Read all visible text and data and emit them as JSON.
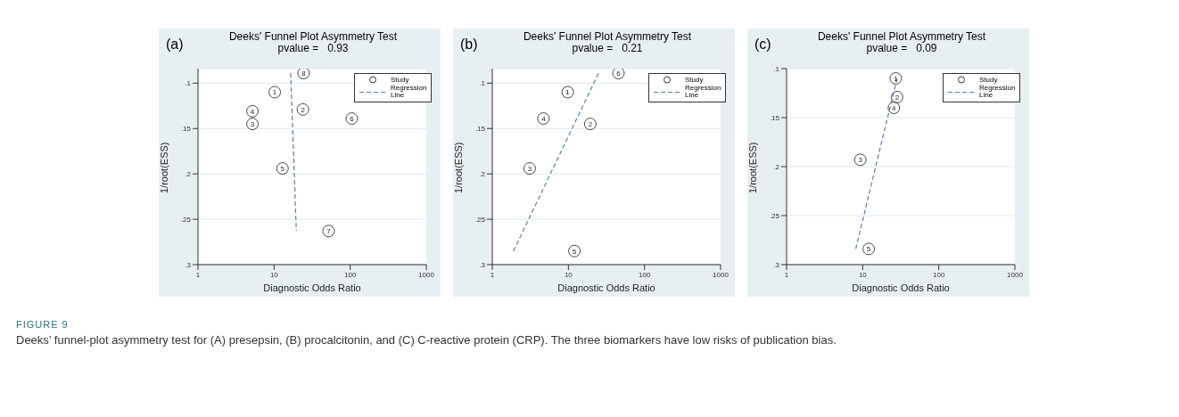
{
  "chart_data": [
    {
      "type": "scatter",
      "title": "Deeks' Funnel Plot Asymmetry Test",
      "subtitle": "pvalue =   0.93",
      "xlabel": "Diagnostic Odds Ratio",
      "ylabel": "1/root(ESS)",
      "annotations": [
        "(a)",
        {
          "text": "8",
          "x": 24.4,
          "y": 0.089
        },
        {
          "text": "1",
          "x": 10.2,
          "y": 0.11
        },
        {
          "text": "4",
          "x": 5.2,
          "y": 0.131
        },
        {
          "text": "3",
          "x": 5.2,
          "y": 0.145
        },
        {
          "text": "2",
          "x": 23.9,
          "y": 0.129
        },
        {
          "text": "6",
          "x": 105,
          "y": 0.139
        },
        {
          "text": "5",
          "x": 12.9,
          "y": 0.194
        },
        {
          "text": "7",
          "x": 52,
          "y": 0.263
        }
      ],
      "log": "x",
      "xlim": [
        1,
        1000
      ],
      "xticks": [
        1,
        10,
        100,
        1000
      ],
      "ylim": [
        0.3,
        0.084
      ],
      "yticks": [
        {
          "value": 0.1,
          "label": ".1"
        },
        {
          "value": 0.15,
          "label": ".15"
        },
        {
          "value": 0.2,
          "label": ".2"
        },
        {
          "value": 0.25,
          "label": ".25"
        },
        {
          "value": 0.3,
          "label": ".3"
        }
      ],
      "grid": "y",
      "legend": "top right",
      "marker": "circle",
      "series": [
        {
          "name": "Study",
          "color": "#333333",
          "x": [
            24.4,
            10.2,
            5.2,
            5.2,
            23.9,
            105,
            12.9,
            52
          ],
          "values": [
            0.089,
            0.11,
            0.131,
            0.145,
            0.129,
            0.139,
            0.194,
            0.263
          ]
        },
        {
          "name": "Regression Line",
          "type": "line",
          "color": "#5b7fa6",
          "line_style": "dashed",
          "marker": "none",
          "x": [
            16.5,
            19.6
          ],
          "values": [
            0.089,
            0.263
          ]
        }
      ]
    },
    {
      "type": "scatter",
      "title": "Deeks' Funnel Plot Asymmetry Test",
      "subtitle": "pvalue =   0.21",
      "xlabel": "Diagnostic Odds Ratio",
      "ylabel": "1/root(ESS)",
      "annotations": [
        "(b)",
        {
          "text": "6",
          "x": 45.5,
          "y": 0.089
        },
        {
          "text": "1",
          "x": 9.8,
          "y": 0.11
        },
        {
          "text": "4",
          "x": 4.7,
          "y": 0.139
        },
        {
          "text": "2",
          "x": 19.4,
          "y": 0.145
        },
        {
          "text": "3",
          "x": 3.1,
          "y": 0.194
        },
        {
          "text": "5",
          "x": 12,
          "y": 0.285
        }
      ],
      "log": "x",
      "xlim": [
        1,
        1000
      ],
      "xticks": [
        1,
        10,
        100,
        1000
      ],
      "ylim": [
        0.3,
        0.084
      ],
      "yticks": [
        {
          "value": 0.1,
          "label": ".1"
        },
        {
          "value": 0.15,
          "label": ".15"
        },
        {
          "value": 0.2,
          "label": ".2"
        },
        {
          "value": 0.25,
          "label": ".25"
        },
        {
          "value": 0.3,
          "label": ".3"
        }
      ],
      "grid": "y",
      "legend": "top right",
      "marker": "circle",
      "series": [
        {
          "name": "Study",
          "color": "#333333",
          "x": [
            45.5,
            9.8,
            4.7,
            19.4,
            3.1,
            12
          ],
          "values": [
            0.089,
            0.11,
            0.139,
            0.145,
            0.194,
            0.285
          ]
        },
        {
          "name": "Regression Line",
          "type": "line",
          "color": "#5b7fa6",
          "line_style": "dashed",
          "marker": "none",
          "x": [
            1.9,
            24.9
          ],
          "values": [
            0.285,
            0.089
          ]
        }
      ]
    },
    {
      "type": "scatter",
      "title": "Deeks' Funnel Plot Asymmetry Test",
      "subtitle": "pvalue =   0.09",
      "xlabel": "Diagnostic Odds Ratio",
      "ylabel": "1/root(ESS)",
      "annotations": [
        "(c)",
        {
          "text": "1",
          "x": 27.2,
          "y": 0.11
        },
        {
          "text": "2",
          "x": 28.3,
          "y": 0.129
        },
        {
          "text": "4",
          "x": 25.7,
          "y": 0.14
        },
        {
          "text": "3",
          "x": 9.3,
          "y": 0.193
        },
        {
          "text": "5",
          "x": 12,
          "y": 0.284
        },
        "FIGURE 9",
        "Deeks’ funnel-plot asymmetry test for (A) presepsin, (B) procalcitonin, and (C) C-reactive protein (CRP). The three biomarkers have low risks of publication bias."
      ],
      "log": "x",
      "xlim": [
        1,
        1000
      ],
      "xticks": [
        1,
        10,
        100,
        1000
      ],
      "ylim": [
        0.3,
        0.1
      ],
      "yticks": [
        {
          "value": 0.1,
          "label": ".1"
        },
        {
          "value": 0.15,
          "label": ".15"
        },
        {
          "value": 0.2,
          "label": ".2"
        },
        {
          "value": 0.25,
          "label": ".25"
        },
        {
          "value": 0.3,
          "label": ".3"
        }
      ],
      "grid": "y",
      "legend": "top right",
      "marker": "circle",
      "series": [
        {
          "name": "Study",
          "color": "#333333",
          "x": [
            27.2,
            28.3,
            25.7,
            9.3,
            12
          ],
          "values": [
            0.11,
            0.129,
            0.14,
            0.193,
            0.284
          ]
        },
        {
          "name": "Regression Line",
          "type": "line",
          "color": "#5b7fa6",
          "line_style": "dashed",
          "marker": "none",
          "x": [
            8.1,
            28.3
          ],
          "values": [
            0.284,
            0.11
          ]
        }
      ]
    }
  ]
}
